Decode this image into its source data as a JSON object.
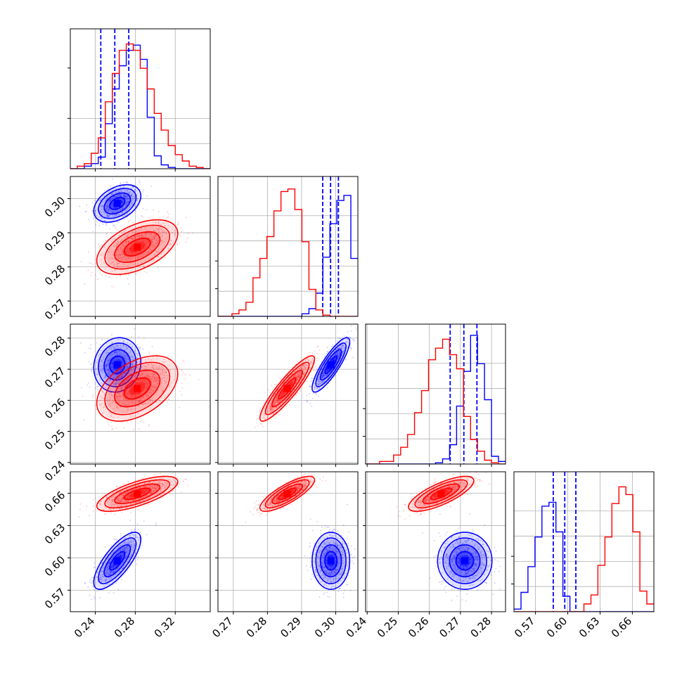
{
  "chart_data": {
    "type": "scatter",
    "subtype": "corner-plot",
    "title": "",
    "grid": true,
    "legend": "none",
    "series": [
      {
        "color": "#0000ff",
        "params": [
          {
            "mean": 0.262,
            "sd": 0.0094,
            "quantiles": [
              0.2455,
              0.2595,
              0.2735
            ]
          },
          {
            "mean": 0.2986,
            "sd": 0.0022,
            "quantiles": [
              0.2962,
              0.2985,
              0.3008
            ]
          },
          {
            "mean": 0.2714,
            "sd": 0.0035,
            "quantiles": [
              0.2667,
              0.2711,
              0.2753
            ]
          },
          {
            "mean": 0.5973,
            "sd": 0.0106,
            "quantiles": [
              0.5865,
              0.5972,
              0.6075
            ]
          }
        ],
        "correlations": {
          "1-0": 0.4,
          "2-0": 0.1,
          "2-1": 0.85,
          "3-0": 0.75,
          "3-1": 0.0,
          "3-2": 0.0
        },
        "hist_counts": [
          [
            0.0,
            0.0,
            0.02,
            0.04,
            0.09,
            0.35,
            0.62,
            0.8,
            0.92,
            0.96,
            0.85,
            0.4,
            0.1,
            0.03,
            0.01,
            0.0,
            0.0,
            0.0,
            0.0,
            0.0
          ],
          [
            0.0,
            0.0,
            0.0,
            0.0,
            0.0,
            0.0,
            0.0,
            0.0,
            0.0,
            0.0,
            0.0,
            0.0,
            0.02,
            0.06,
            0.18,
            0.46,
            0.72,
            0.9,
            0.94,
            0.45
          ],
          [
            0.0,
            0.0,
            0.0,
            0.0,
            0.0,
            0.0,
            0.0,
            0.0,
            0.0,
            0.0,
            0.01,
            0.04,
            0.15,
            0.45,
            0.72,
            1.0,
            0.78,
            0.5,
            0.06,
            0.02
          ],
          [
            0.02,
            0.15,
            0.35,
            0.58,
            0.82,
            0.85,
            0.62,
            0.12,
            0.0,
            0.0,
            0.0,
            0.0,
            0.0,
            0.0,
            0.0,
            0.0,
            0.0,
            0.0,
            0.0,
            0.0
          ]
        ]
      },
      {
        "color": "#ff0000",
        "params": [
          {
            "mean": 0.282,
            "sd": 0.0162
          },
          {
            "mean": 0.2858,
            "sd": 0.0032
          },
          {
            "mean": 0.2638,
            "sd": 0.0042
          },
          {
            "mean": 0.6595,
            "sd": 0.0065
          }
        ],
        "correlations": {
          "1-0": 0.5,
          "2-0": 0.45,
          "2-1": 0.9,
          "3-0": 0.7,
          "3-1": 0.8,
          "3-2": 0.75
        },
        "hist_counts": [
          [
            0.0,
            0.02,
            0.04,
            0.12,
            0.24,
            0.52,
            0.74,
            0.92,
            0.97,
            0.92,
            0.78,
            0.62,
            0.43,
            0.3,
            0.18,
            0.11,
            0.06,
            0.02,
            0.01,
            0.0
          ],
          [
            0.0,
            0.0,
            0.02,
            0.05,
            0.11,
            0.3,
            0.45,
            0.62,
            0.82,
            0.97,
            0.99,
            0.83,
            0.58,
            0.21,
            0.05,
            0.01,
            0.0,
            0.0,
            0.0,
            0.0
          ],
          [
            0.0,
            0.0,
            0.02,
            0.02,
            0.07,
            0.13,
            0.23,
            0.4,
            0.57,
            0.81,
            0.9,
            0.97,
            0.85,
            0.74,
            0.37,
            0.19,
            0.1,
            0.03,
            0.01,
            0.0
          ],
          [
            0.0,
            0.0,
            0.0,
            0.0,
            0.0,
            0.0,
            0.0,
            0.0,
            0.0,
            0.0,
            0.06,
            0.13,
            0.36,
            0.58,
            0.84,
            0.97,
            0.91,
            0.62,
            0.16,
            0.06
          ]
        ]
      }
    ],
    "axes": [
      {
        "range": [
          0.215,
          0.355
        ],
        "tick_values": [
          0.24,
          0.28,
          0.32
        ],
        "tick_labels": [
          "0.24",
          "0.28",
          "0.32"
        ]
      },
      {
        "range": [
          0.2655,
          0.3065
        ],
        "tick_values": [
          0.27,
          0.28,
          0.29,
          0.3
        ],
        "tick_labels": [
          "0.27",
          "0.28",
          "0.29",
          "0.30"
        ]
      },
      {
        "range": [
          0.2395,
          0.2845
        ],
        "tick_values": [
          0.24,
          0.25,
          0.26,
          0.27,
          0.28
        ],
        "tick_labels": [
          "0.24",
          "0.25",
          "0.26",
          "0.27",
          "0.28"
        ]
      },
      {
        "range": [
          0.55,
          0.68
        ],
        "tick_values": [
          0.57,
          0.6,
          0.63,
          0.66
        ],
        "tick_labels": [
          "0.57",
          "0.60",
          "0.63",
          "0.66"
        ]
      }
    ]
  }
}
